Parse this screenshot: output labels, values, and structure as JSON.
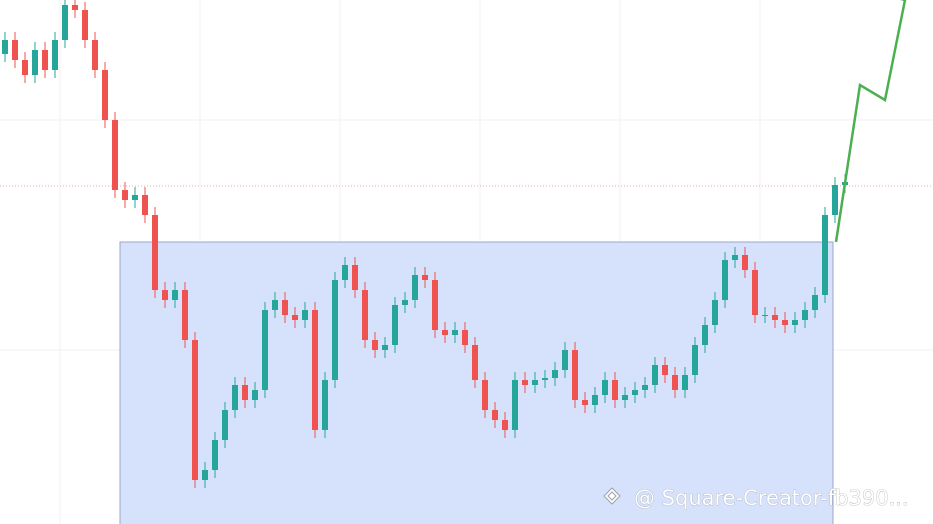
{
  "chart_data": {
    "type": "candlestick",
    "watermark": "@ Square-Creator-fb390...",
    "ylim": [
      0,
      524
    ],
    "up_color": "#26a69a",
    "down_color": "#ef5350",
    "open": [
      470,
      484,
      464,
      449,
      474,
      454,
      484,
      519,
      514,
      484,
      454,
      404,
      334,
      324,
      329,
      309,
      234,
      224,
      234,
      184,
      44,
      54,
      84,
      114,
      139,
      124,
      134,
      214,
      224,
      209,
      204,
      214,
      94,
      144,
      244,
      259,
      234,
      184,
      174,
      179,
      219,
      224,
      249,
      244,
      194,
      189,
      194,
      179,
      144,
      114,
      104,
      94,
      144,
      139,
      144,
      146,
      154,
      174,
      124,
      119,
      129,
      144,
      124,
      129,
      134,
      139,
      159,
      149,
      134,
      149,
      179,
      199,
      224,
      264,
      269,
      254,
      209,
      209,
      204,
      199,
      204,
      214,
      229,
      309,
      339
    ],
    "high": [
      492,
      492,
      472,
      482,
      482,
      492,
      524,
      524,
      522,
      492,
      462,
      412,
      342,
      337,
      337,
      317,
      242,
      242,
      242,
      192,
      62,
      92,
      122,
      147,
      147,
      142,
      222,
      232,
      232,
      217,
      222,
      222,
      152,
      252,
      267,
      267,
      242,
      192,
      187,
      227,
      232,
      257,
      257,
      252,
      202,
      202,
      202,
      187,
      152,
      122,
      112,
      152,
      152,
      152,
      154,
      162,
      182,
      182,
      132,
      137,
      152,
      152,
      137,
      142,
      147,
      167,
      167,
      157,
      157,
      187,
      207,
      232,
      272,
      277,
      277,
      262,
      217,
      217,
      212,
      212,
      222,
      237,
      317,
      347,
      350
    ],
    "low": [
      462,
      456,
      441,
      441,
      446,
      446,
      476,
      506,
      476,
      446,
      396,
      326,
      316,
      316,
      301,
      226,
      216,
      216,
      176,
      36,
      36,
      46,
      76,
      106,
      116,
      116,
      126,
      206,
      201,
      196,
      196,
      86,
      86,
      136,
      236,
      226,
      176,
      166,
      166,
      171,
      211,
      216,
      236,
      186,
      181,
      181,
      171,
      136,
      106,
      96,
      86,
      86,
      131,
      131,
      136,
      138,
      146,
      116,
      111,
      111,
      121,
      116,
      116,
      121,
      126,
      131,
      141,
      126,
      126,
      141,
      171,
      191,
      216,
      256,
      246,
      201,
      201,
      196,
      191,
      191,
      196,
      206,
      221,
      301,
      331
    ],
    "close": [
      484,
      464,
      449,
      474,
      454,
      484,
      519,
      514,
      484,
      454,
      404,
      334,
      324,
      329,
      309,
      234,
      224,
      234,
      184,
      44,
      54,
      84,
      114,
      139,
      124,
      134,
      214,
      224,
      209,
      204,
      214,
      94,
      144,
      244,
      259,
      234,
      184,
      174,
      179,
      219,
      224,
      249,
      244,
      194,
      189,
      194,
      179,
      144,
      114,
      104,
      94,
      144,
      139,
      144,
      146,
      154,
      174,
      124,
      119,
      129,
      144,
      124,
      129,
      134,
      139,
      159,
      149,
      134,
      149,
      179,
      199,
      224,
      264,
      269,
      254,
      209,
      209,
      204,
      199,
      204,
      214,
      229,
      309,
      339,
      342
    ]
  }
}
